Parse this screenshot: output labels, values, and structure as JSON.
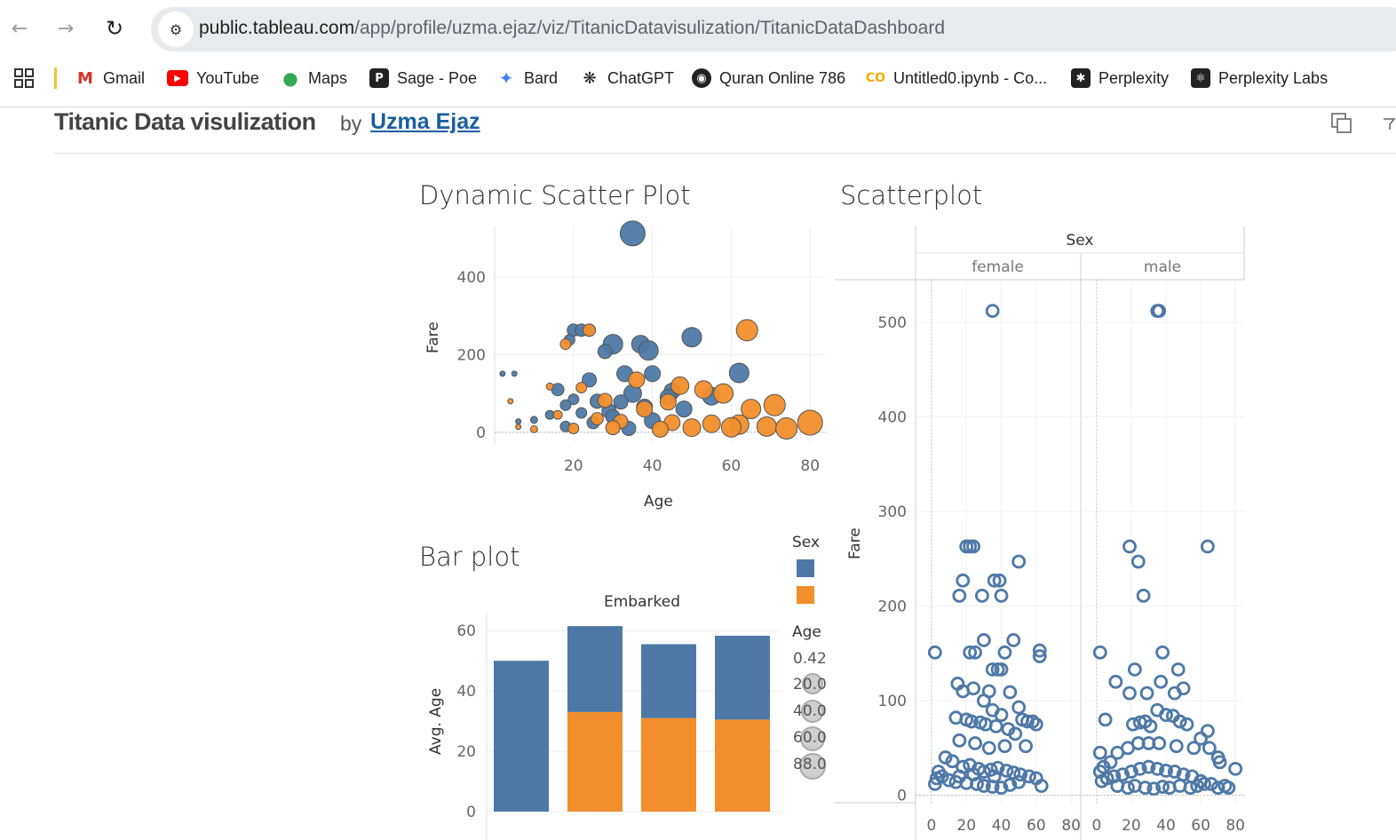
{
  "browser": {
    "url_domain": "public.tableau.com",
    "url_path": "/app/profile/uzma.ejaz/viz/TitanicDatavisulization/TitanicDataDashboard",
    "bookmarks": [
      {
        "label": "Gmail",
        "icon": "gmail-icon",
        "color": "#d93025"
      },
      {
        "label": "YouTube",
        "icon": "youtube-icon",
        "color": "#ff0000"
      },
      {
        "label": "Maps",
        "icon": "maps-pin-icon",
        "color": "#34a853"
      },
      {
        "label": "Sage - Poe",
        "icon": "poe-icon",
        "color": "#222222"
      },
      {
        "label": "Bard",
        "icon": "bard-sparkle-icon",
        "color": "#4285f4"
      },
      {
        "label": "ChatGPT",
        "icon": "chatgpt-icon",
        "color": "#222222"
      },
      {
        "label": "Quran Online 786",
        "icon": "quran-icon",
        "color": "#222222"
      },
      {
        "label": "Untitled0.ipynb - Co...",
        "icon": "colab-icon",
        "color": "#f9ab00"
      },
      {
        "label": "Perplexity",
        "icon": "perplexity-icon",
        "color": "#222222"
      },
      {
        "label": "Perplexity Labs",
        "icon": "perplexity-labs-icon",
        "color": "#222222"
      }
    ]
  },
  "page": {
    "title": "Titanic Data visulization",
    "by": "by",
    "author": "Uzma Ejaz"
  },
  "colors": {
    "female": "#4e79a7",
    "male": "#f28e2b"
  },
  "dashboard": {
    "dynamic_scatter_title": "Dynamic Scatter Plot",
    "scatterplot_title": "Scatterplot",
    "bar_plot_title": "Bar plot",
    "legend": {
      "sex_title": "Sex",
      "age_title": "Age",
      "age_values": [
        "0.42",
        "20.0",
        "40.0",
        "60.0",
        "88.0"
      ]
    }
  },
  "chart_data": [
    {
      "type": "scatter",
      "title": "Dynamic Scatter Plot",
      "xlabel": "Age",
      "ylabel": "Fare",
      "xticks": [
        "20",
        "40",
        "60",
        "80"
      ],
      "yticks": [
        "0",
        "200",
        "400"
      ],
      "xlim": [
        0,
        84
      ],
      "ylim": [
        -30,
        530
      ],
      "series": [
        {
          "color": "#4e79a7",
          "points": [
            [
              35,
              512,
              14
            ],
            [
              50,
              245,
              11
            ],
            [
              30,
              227,
              11
            ],
            [
              37,
              227,
              10
            ],
            [
              39,
              211,
              11
            ],
            [
              62,
              153,
              11
            ],
            [
              24,
              263,
              7
            ],
            [
              20,
              263,
              7
            ],
            [
              22,
              263,
              7
            ],
            [
              19,
              238,
              6
            ],
            [
              28,
              208,
              8
            ],
            [
              33,
              151,
              9
            ],
            [
              40,
              151,
              9
            ],
            [
              2,
              151,
              3
            ],
            [
              5,
              151,
              3
            ],
            [
              24,
              135,
              8
            ],
            [
              16,
              110,
              7
            ],
            [
              45,
              106,
              9
            ],
            [
              35,
              100,
              10
            ],
            [
              55,
              93,
              10
            ],
            [
              44,
              90,
              9
            ],
            [
              20,
              85,
              6
            ],
            [
              26,
              80,
              8
            ],
            [
              18,
              70,
              6
            ],
            [
              32,
              78,
              8
            ],
            [
              38,
              65,
              9
            ],
            [
              48,
              60,
              9
            ],
            [
              29,
              55,
              8
            ],
            [
              22,
              50,
              6
            ],
            [
              14,
              45,
              5
            ],
            [
              30,
              40,
              8
            ],
            [
              10,
              32,
              4
            ],
            [
              6,
              28,
              3
            ],
            [
              40,
              30,
              9
            ],
            [
              25,
              25,
              7
            ],
            [
              18,
              15,
              6
            ],
            [
              34,
              10,
              8
            ]
          ]
        },
        {
          "color": "#f28e2b",
          "points": [
            [
              64,
              263,
              12
            ],
            [
              24,
              263,
              7
            ],
            [
              18,
              227,
              6
            ],
            [
              36,
              135,
              9
            ],
            [
              47,
              120,
              10
            ],
            [
              53,
              110,
              10
            ],
            [
              58,
              100,
              11
            ],
            [
              71,
              70,
              12
            ],
            [
              65,
              60,
              11
            ],
            [
              28,
              82,
              8
            ],
            [
              44,
              78,
              9
            ],
            [
              38,
              60,
              9
            ],
            [
              22,
              115,
              6
            ],
            [
              14,
              118,
              4
            ],
            [
              4,
              80,
              3
            ],
            [
              16,
              45,
              5
            ],
            [
              26,
              35,
              7
            ],
            [
              32,
              28,
              8
            ],
            [
              45,
              25,
              9
            ],
            [
              55,
              22,
              10
            ],
            [
              62,
              20,
              11
            ],
            [
              69,
              15,
              11
            ],
            [
              80,
              25,
              14
            ],
            [
              74,
              10,
              12
            ],
            [
              30,
              12,
              8
            ],
            [
              50,
              12,
              10
            ],
            [
              60,
              13,
              11
            ],
            [
              42,
              8,
              9
            ],
            [
              20,
              10,
              6
            ],
            [
              10,
              8,
              4
            ],
            [
              6,
              14,
              3
            ]
          ]
        }
      ]
    },
    {
      "type": "scatter",
      "title": "Scatterplot",
      "xlabel": "",
      "ylabel": "Fare",
      "facet_title": "Sex",
      "facets": [
        "female",
        "male"
      ],
      "xticks": [
        "0",
        "20",
        "40",
        "60",
        "80"
      ],
      "yticks": [
        "0",
        "100",
        "200",
        "300",
        "400",
        "500"
      ],
      "xlim": [
        -3,
        84
      ],
      "ylim": [
        -5,
        545
      ],
      "series": [
        {
          "name": "female",
          "color": "#4e79a7",
          "points": [
            [
              35,
              512
            ],
            [
              24,
              263
            ],
            [
              22,
              263
            ],
            [
              20,
              263
            ],
            [
              50,
              247
            ],
            [
              18,
              227
            ],
            [
              36,
              227
            ],
            [
              39,
              227
            ],
            [
              16,
              211
            ],
            [
              29,
              211
            ],
            [
              40,
              211
            ],
            [
              2,
              151
            ],
            [
              22,
              151
            ],
            [
              25,
              151
            ],
            [
              62,
              153
            ],
            [
              62,
              147
            ],
            [
              47,
              164
            ],
            [
              30,
              164
            ],
            [
              42,
              151
            ],
            [
              35,
              133
            ],
            [
              38,
              133
            ],
            [
              40,
              133
            ],
            [
              15,
              118
            ],
            [
              18,
              110
            ],
            [
              24,
              113
            ],
            [
              33,
              110
            ],
            [
              45,
              109
            ],
            [
              30,
              100
            ],
            [
              50,
              93
            ],
            [
              35,
              90
            ],
            [
              40,
              85
            ],
            [
              52,
              80
            ],
            [
              55,
              78
            ],
            [
              58,
              78
            ],
            [
              60,
              75
            ],
            [
              14,
              82
            ],
            [
              20,
              80
            ],
            [
              23,
              78
            ],
            [
              28,
              77
            ],
            [
              31,
              75
            ],
            [
              37,
              73
            ],
            [
              44,
              70
            ],
            [
              48,
              65
            ],
            [
              16,
              58
            ],
            [
              25,
              55
            ],
            [
              33,
              50
            ],
            [
              42,
              52
            ],
            [
              54,
              52
            ],
            [
              8,
              40
            ],
            [
              12,
              36
            ],
            [
              18,
              30
            ],
            [
              22,
              32
            ],
            [
              27,
              28
            ],
            [
              30,
              25
            ],
            [
              34,
              27
            ],
            [
              38,
              29
            ],
            [
              43,
              26
            ],
            [
              47,
              24
            ],
            [
              51,
              22
            ],
            [
              56,
              20
            ],
            [
              60,
              18
            ],
            [
              4,
              25
            ],
            [
              6,
              20
            ],
            [
              10,
              16
            ],
            [
              14,
              14
            ],
            [
              20,
              13
            ],
            [
              26,
              12
            ],
            [
              30,
              10
            ],
            [
              35,
              9
            ],
            [
              40,
              8
            ],
            [
              45,
              11
            ],
            [
              50,
              14
            ],
            [
              2,
              12
            ],
            [
              3,
              18
            ],
            [
              16,
              20
            ],
            [
              24,
              22
            ],
            [
              36,
              20
            ],
            [
              63,
              10
            ]
          ]
        },
        {
          "name": "male",
          "color": "#4e79a7",
          "points": [
            [
              35,
              512
            ],
            [
              36,
              512
            ],
            [
              19,
              263
            ],
            [
              24,
              247
            ],
            [
              64,
              263
            ],
            [
              27,
              211
            ],
            [
              2,
              151
            ],
            [
              38,
              151
            ],
            [
              22,
              133
            ],
            [
              47,
              133
            ],
            [
              11,
              120
            ],
            [
              37,
              120
            ],
            [
              19,
              108
            ],
            [
              29,
              108
            ],
            [
              45,
              108
            ],
            [
              50,
              113
            ],
            [
              35,
              90
            ],
            [
              40,
              85
            ],
            [
              44,
              84
            ],
            [
              48,
              78
            ],
            [
              52,
              75
            ],
            [
              25,
              77
            ],
            [
              28,
              78
            ],
            [
              31,
              73
            ],
            [
              21,
              75
            ],
            [
              5,
              80
            ],
            [
              64,
              68
            ],
            [
              60,
              60
            ],
            [
              65,
              50
            ],
            [
              70,
              40
            ],
            [
              56,
              50
            ],
            [
              46,
              52
            ],
            [
              36,
              55
            ],
            [
              30,
              55
            ],
            [
              24,
              55
            ],
            [
              18,
              50
            ],
            [
              12,
              45
            ],
            [
              2,
              45
            ],
            [
              71,
              35
            ],
            [
              80,
              28
            ],
            [
              74,
              10
            ],
            [
              66,
              12
            ],
            [
              60,
              15
            ],
            [
              55,
              20
            ],
            [
              50,
              22
            ],
            [
              45,
              25
            ],
            [
              40,
              26
            ],
            [
              35,
              28
            ],
            [
              30,
              30
            ],
            [
              25,
              28
            ],
            [
              20,
              25
            ],
            [
              15,
              22
            ],
            [
              10,
              20
            ],
            [
              6,
              18
            ],
            [
              3,
              15
            ],
            [
              2,
              25
            ],
            [
              4,
              30
            ],
            [
              8,
              35
            ],
            [
              12,
              10
            ],
            [
              18,
              8
            ],
            [
              22,
              10
            ],
            [
              28,
              8
            ],
            [
              33,
              7
            ],
            [
              38,
              9
            ],
            [
              42,
              8
            ],
            [
              48,
              10
            ],
            [
              54,
              8
            ],
            [
              58,
              10
            ],
            [
              62,
              12
            ],
            [
              70,
              8
            ],
            [
              76,
              8
            ]
          ]
        }
      ]
    },
    {
      "type": "bar",
      "title": "Bar plot",
      "facet_title": "Embarked",
      "ylabel": "Avg. Age",
      "yticks": [
        "0",
        "20",
        "40",
        "60"
      ],
      "ylim": [
        -5,
        63
      ],
      "stacked": true,
      "series": [
        {
          "name": "female",
          "color": "#4e79a7",
          "values": [
            50.0,
            28.5,
            24.5,
            27.8
          ]
        },
        {
          "name": "male",
          "color": "#f28e2b",
          "values": [
            0,
            33.0,
            31.0,
            30.5
          ]
        }
      ]
    }
  ]
}
